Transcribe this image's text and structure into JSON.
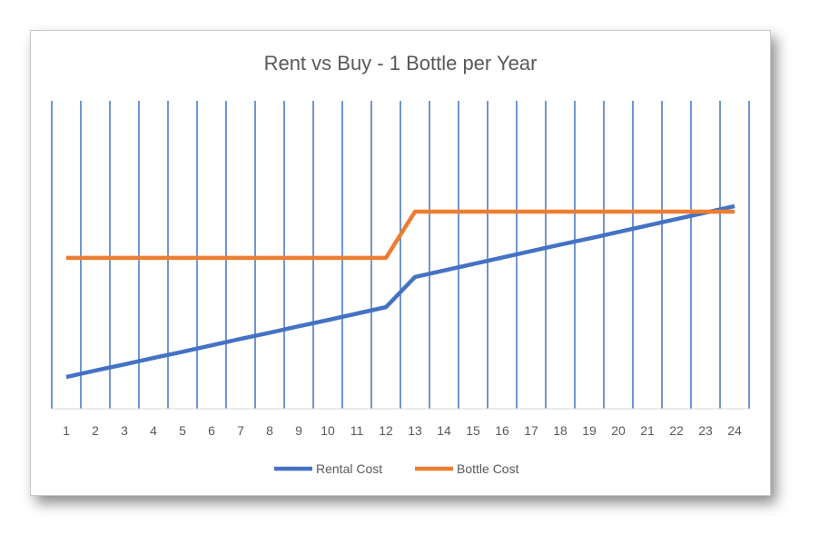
{
  "chart_data": {
    "type": "line",
    "title": "Rent vs Buy - 1 Bottle per Year",
    "xlabel": "",
    "ylabel": "",
    "categories": [
      "1",
      "2",
      "3",
      "4",
      "5",
      "6",
      "7",
      "8",
      "9",
      "10",
      "11",
      "12",
      "13",
      "14",
      "15",
      "16",
      "17",
      "18",
      "19",
      "20",
      "21",
      "22",
      "23",
      "24"
    ],
    "ylim": [
      0,
      100
    ],
    "y_axis_labels_shown": false,
    "grid": "vertical",
    "grid_color": "#4472C4",
    "legend_position": "bottom",
    "series": [
      {
        "name": "Rental Cost",
        "color": "#4472C4",
        "values": [
          10.3,
          12.4,
          14.4,
          16.5,
          18.5,
          20.6,
          22.7,
          24.7,
          26.8,
          28.8,
          30.9,
          33.0,
          42.8,
          44.9,
          47.0,
          49.1,
          51.2,
          53.3,
          55.3,
          57.4,
          59.5,
          61.6,
          63.7,
          65.8
        ]
      },
      {
        "name": "Bottle Cost",
        "color": "#ED7D31",
        "values": [
          49,
          49,
          49,
          49,
          49,
          49,
          49,
          49,
          49,
          49,
          49,
          49,
          64,
          64,
          64,
          64,
          64,
          64,
          64,
          64,
          64,
          64,
          64,
          64
        ]
      }
    ]
  }
}
